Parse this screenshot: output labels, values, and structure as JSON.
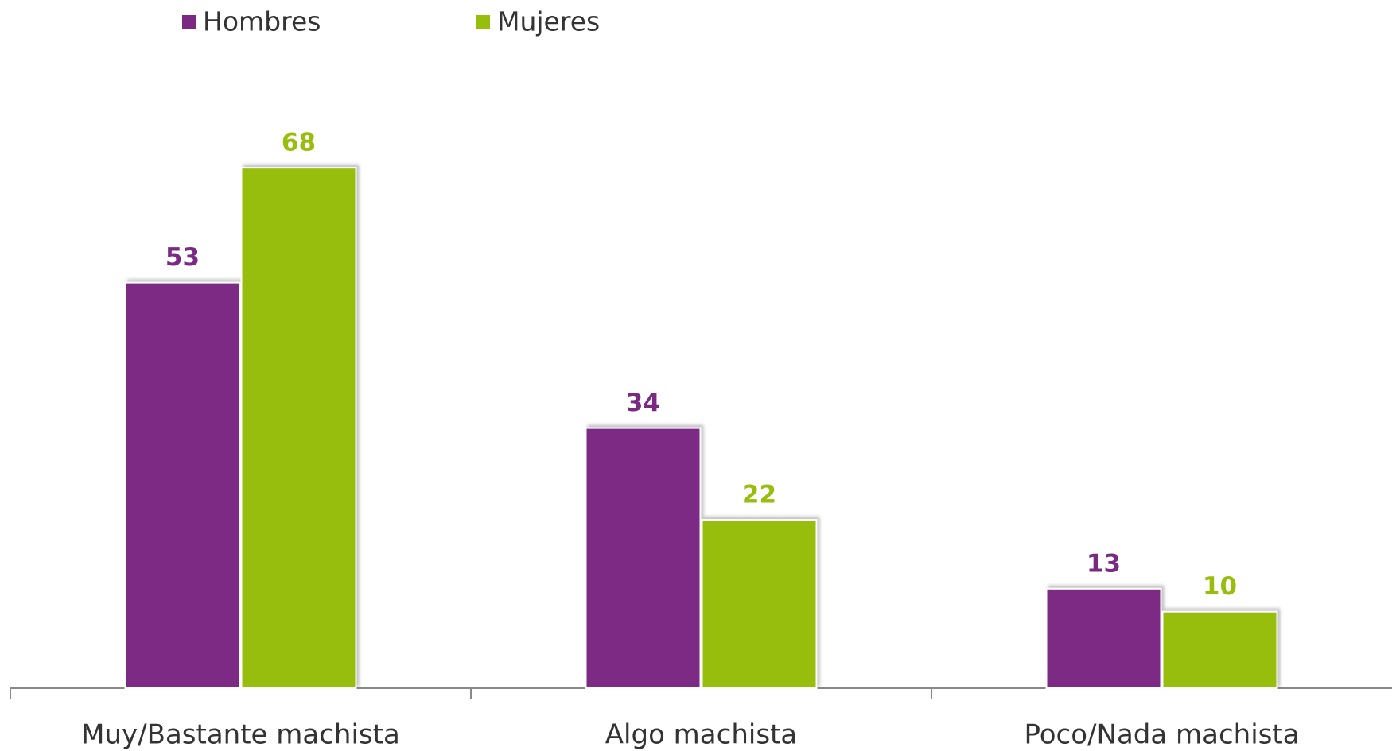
{
  "chart_data": {
    "type": "bar",
    "legend": "top",
    "categories": [
      "Muy/Bastante machista",
      "Algo machista",
      "Poco/Nada machista"
    ],
    "series": [
      {
        "name": "Hombres",
        "color": "#7b2a84",
        "values": [
          53,
          34,
          13
        ]
      },
      {
        "name": "Mujeres",
        "color": "#97be0d",
        "values": [
          68,
          22,
          10
        ]
      }
    ]
  }
}
